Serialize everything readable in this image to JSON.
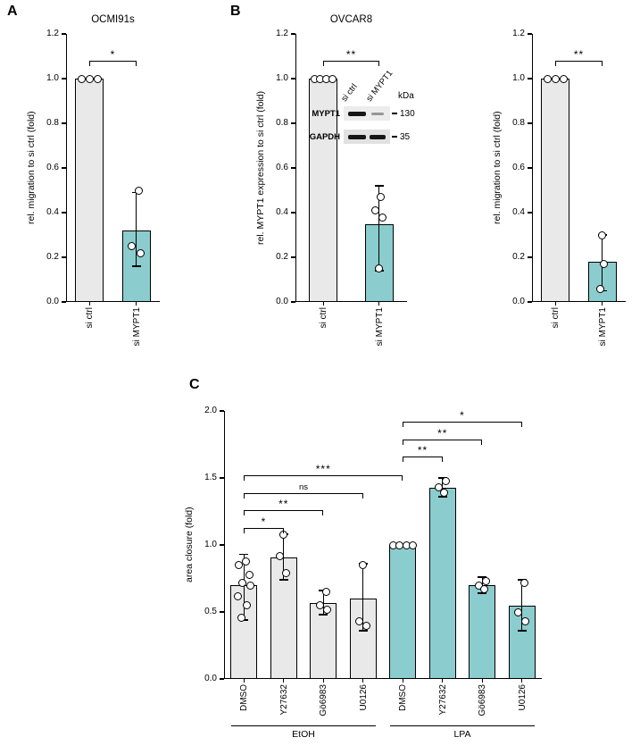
{
  "panel_labels": {
    "a": "A",
    "b": "B",
    "c": "C"
  },
  "panels": {
    "b": {
      "blot": {
        "unit": "kDa",
        "lanes": [
          "si ctrl",
          "si MYPT1"
        ],
        "rows": [
          {
            "name": "MYPT1",
            "marker": "130"
          },
          {
            "name": "GAPDH",
            "marker": "35"
          }
        ]
      }
    }
  },
  "colors": {
    "bar_gray": "#e9e9e9",
    "bar_teal": "#8bccce",
    "axis": "#000000"
  },
  "chart_data": [
    {
      "id": "a",
      "type": "bar",
      "title": "OCMI91s",
      "ylabel": "rel. migration to si ctrl (fold)",
      "ylim": [
        0,
        1.2
      ],
      "yticks": [
        0,
        0.2,
        0.4,
        0.6,
        0.8,
        1.0,
        1.2
      ],
      "categories": [
        "si ctrl",
        "si MYPT1"
      ],
      "values": [
        1.0,
        0.32
      ],
      "bar_colors": [
        "#e9e9e9",
        "#8bccce"
      ],
      "error_low": [
        1.0,
        0.16
      ],
      "error_high": [
        1.0,
        0.49
      ],
      "points": [
        [
          [
            1.0,
            -9
          ],
          [
            1.0,
            0
          ],
          [
            1.0,
            9
          ]
        ],
        [
          [
            0.5,
            3
          ],
          [
            0.25,
            -5
          ],
          [
            0.22,
            5
          ]
        ]
      ],
      "brackets": [
        {
          "from": 0,
          "to": 1,
          "y": 1.08,
          "label": "*"
        }
      ]
    },
    {
      "id": "b1",
      "type": "bar",
      "title": "OVCAR8",
      "ylabel": "rel. MYPT1 expression to si ctrl (fold)",
      "ylim": [
        0,
        1.2
      ],
      "yticks": [
        0,
        0.2,
        0.4,
        0.6,
        0.8,
        1.0,
        1.2
      ],
      "categories": [
        "si ctrl",
        "si MYPT1"
      ],
      "values": [
        1.0,
        0.35
      ],
      "bar_colors": [
        "#e9e9e9",
        "#8bccce"
      ],
      "error_low": [
        1.0,
        0.14
      ],
      "error_high": [
        1.0,
        0.52
      ],
      "points": [
        [
          [
            1.0,
            -10
          ],
          [
            1.0,
            -3.5
          ],
          [
            1.0,
            3.5
          ],
          [
            1.0,
            10
          ]
        ],
        [
          [
            0.47,
            2
          ],
          [
            0.41,
            -4
          ],
          [
            0.38,
            4
          ],
          [
            0.15,
            0
          ]
        ]
      ],
      "brackets": [
        {
          "from": 0,
          "to": 1,
          "y": 1.08,
          "label": "**"
        }
      ]
    },
    {
      "id": "b2",
      "type": "bar",
      "title": "",
      "ylabel": "rel. migration to si ctrl (fold)",
      "ylim": [
        0,
        1.2
      ],
      "yticks": [
        0,
        0.2,
        0.4,
        0.6,
        0.8,
        1.0,
        1.2
      ],
      "categories": [
        "si ctrl",
        "si MYPT1"
      ],
      "values": [
        1.0,
        0.18
      ],
      "bar_colors": [
        "#e9e9e9",
        "#8bccce"
      ],
      "error_low": [
        1.0,
        0.05
      ],
      "error_high": [
        1.0,
        0.3
      ],
      "points": [
        [
          [
            1.0,
            -9
          ],
          [
            1.0,
            0
          ],
          [
            1.0,
            9
          ]
        ],
        [
          [
            0.3,
            0
          ],
          [
            0.17,
            2
          ],
          [
            0.06,
            -2
          ]
        ]
      ],
      "brackets": [
        {
          "from": 0,
          "to": 1,
          "y": 1.08,
          "label": "**"
        }
      ]
    },
    {
      "id": "c",
      "type": "bar",
      "title": "",
      "ylabel": "area closure (fold)",
      "ylim": [
        0,
        2.0
      ],
      "yticks": [
        0,
        0.5,
        1.0,
        1.5,
        2.0
      ],
      "categories": [
        "DMSO",
        "Y27632",
        "Gö6983",
        "U0126",
        "DMSO",
        "Y27632",
        "Gö6983",
        "U0126"
      ],
      "values": [
        0.7,
        0.91,
        0.57,
        0.6,
        1.0,
        1.43,
        0.7,
        0.55
      ],
      "bar_colors": [
        "#e9e9e9",
        "#e9e9e9",
        "#e9e9e9",
        "#e9e9e9",
        "#8bccce",
        "#8bccce",
        "#8bccce",
        "#8bccce"
      ],
      "error_low": [
        0.44,
        0.74,
        0.48,
        0.36,
        1.0,
        1.36,
        0.64,
        0.36
      ],
      "error_high": [
        0.93,
        1.08,
        0.66,
        0.86,
        1.0,
        1.5,
        0.76,
        0.74
      ],
      "points": [
        [
          [
            0.88,
            2
          ],
          [
            0.85,
            -6
          ],
          [
            0.78,
            6
          ],
          [
            0.72,
            -2
          ],
          [
            0.7,
            7
          ],
          [
            0.62,
            -7
          ],
          [
            0.55,
            3
          ],
          [
            0.46,
            -3
          ]
        ],
        [
          [
            1.08,
            0
          ],
          [
            0.92,
            -4
          ],
          [
            0.79,
            3
          ]
        ],
        [
          [
            0.65,
            3
          ],
          [
            0.55,
            -4
          ],
          [
            0.52,
            4
          ]
        ],
        [
          [
            0.85,
            0
          ],
          [
            0.43,
            -4
          ],
          [
            0.4,
            4
          ]
        ],
        [
          [
            1.0,
            -11
          ],
          [
            1.0,
            -4
          ],
          [
            1.0,
            4
          ],
          [
            1.0,
            11
          ]
        ],
        [
          [
            1.48,
            4
          ],
          [
            1.43,
            -4
          ],
          [
            1.39,
            2
          ]
        ],
        [
          [
            0.73,
            4
          ],
          [
            0.7,
            -4
          ],
          [
            0.67,
            2
          ]
        ],
        [
          [
            0.72,
            3
          ],
          [
            0.5,
            -4
          ],
          [
            0.43,
            4
          ]
        ]
      ],
      "brackets": [
        {
          "from": 0,
          "to": 1,
          "y": 1.13,
          "label": "*"
        },
        {
          "from": 0,
          "to": 2,
          "y": 1.26,
          "label": "**"
        },
        {
          "from": 0,
          "to": 3,
          "y": 1.39,
          "label": "ns"
        },
        {
          "from": 0,
          "to": 4,
          "y": 1.52,
          "label": "***"
        },
        {
          "from": 4,
          "to": 5,
          "y": 1.66,
          "label": "**"
        },
        {
          "from": 4,
          "to": 6,
          "y": 1.79,
          "label": "**"
        },
        {
          "from": 4,
          "to": 7,
          "y": 1.92,
          "label": "*"
        }
      ],
      "groups": [
        {
          "label": "EtOH",
          "from": 0,
          "to": 3
        },
        {
          "label": "LPA",
          "from": 4,
          "to": 7
        }
      ]
    }
  ]
}
